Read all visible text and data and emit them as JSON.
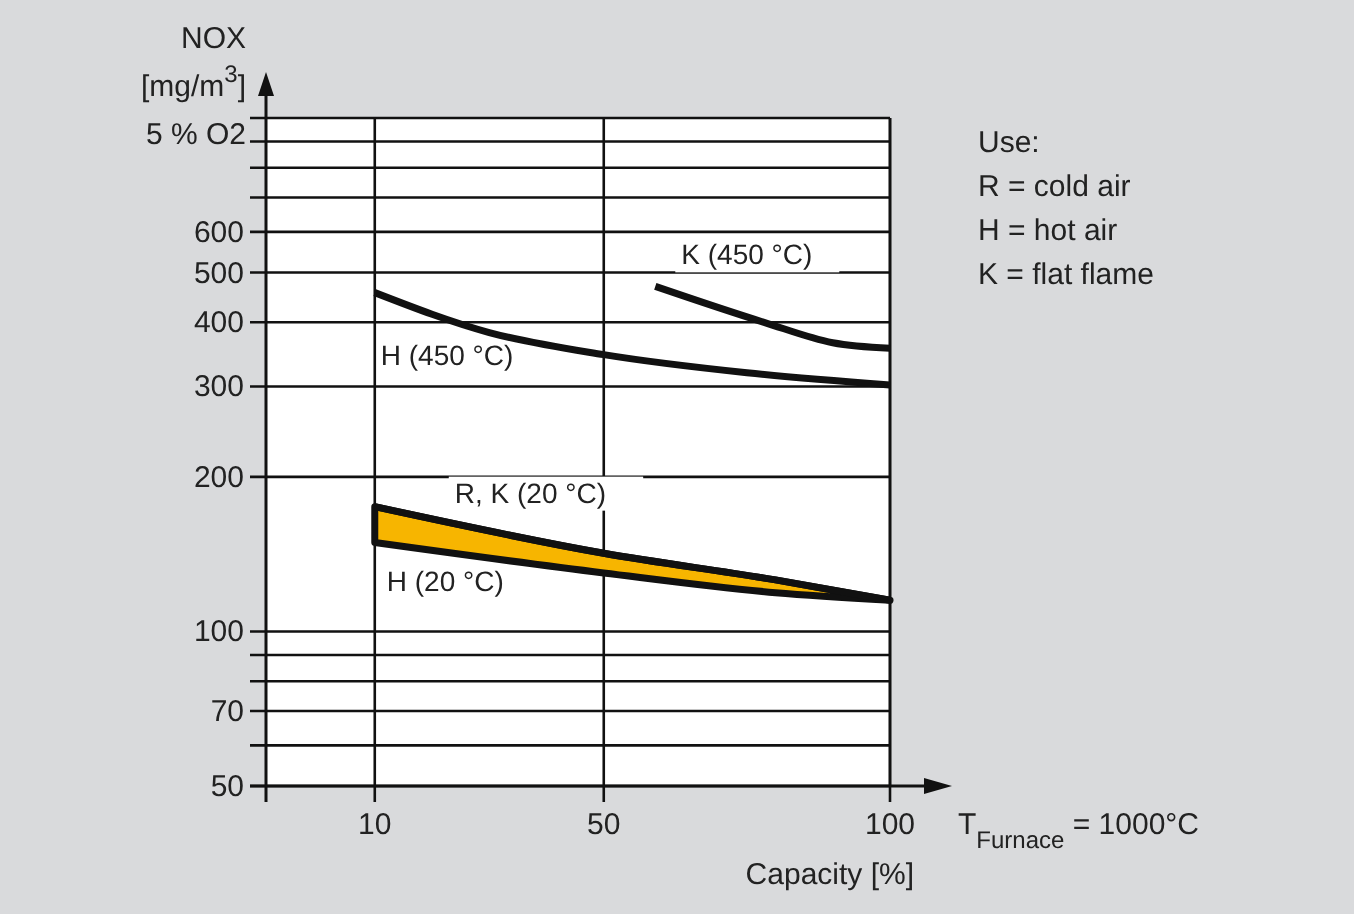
{
  "chart_data": {
    "type": "line",
    "xlabel": "Capacity [%]",
    "ylabel": "NOX\n[mg/m$^{3}$]\n5 % O2",
    "xlim": [
      -9,
      100
    ],
    "xticks": [
      10,
      50,
      100
    ],
    "ylim": [
      50,
      1000
    ],
    "log": true,
    "grid": true,
    "line_style": "solid",
    "yticks": [
      50,
      {
        "value": 60,
        "label": null
      },
      70,
      {
        "value": 80,
        "label": null
      },
      {
        "value": 90,
        "label": null
      },
      100,
      200,
      300,
      400,
      500,
      600,
      {
        "value": 700,
        "label": null
      },
      {
        "value": 800,
        "label": null
      },
      {
        "value": 900,
        "label": null
      },
      {
        "value": 1000,
        "label": null
      }
    ],
    "series": [
      {
        "name": "H (450 °C)",
        "color": "#111111",
        "x": [
          10,
          30,
          50,
          75,
          100
        ],
        "values": [
          457,
          382,
          346,
          319,
          302
        ]
      },
      {
        "name": "K (450 °C)",
        "color": "#111111",
        "x": [
          59,
          78,
          90,
          100
        ],
        "values": [
          470,
          400,
          365,
          356
        ]
      },
      {
        "name": "R, K (20 °C)",
        "color": "#111111",
        "x": [
          10,
          50,
          80,
          100
        ],
        "values": [
          175,
          142,
          126,
          115
        ],
        "lower": [
          149,
          130,
          119,
          115
        ],
        "upper": [
          175,
          142,
          126,
          115
        ]
      }
    ],
    "annotations": [
      "Use:",
      "R = cold air",
      "H = hot air",
      "K = flat flame",
      "T$_{Furnace}$ = 1000°C",
      {
        "text": "H (20 °C)",
        "x": 10,
        "y": 149
      }
    ]
  }
}
